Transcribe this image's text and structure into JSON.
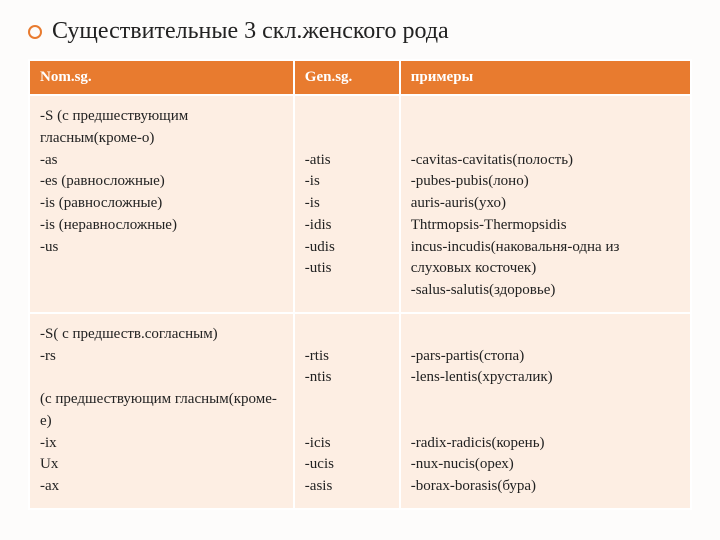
{
  "title": "Существительные 3 скл.женского рода",
  "headers": [
    "Nom.sg.",
    "Gen.sg.",
    "примеры"
  ],
  "colors": {
    "accent": "#e87b2f",
    "cell_bg": "#fdeee3",
    "header_text": "#ffffff",
    "page_bg": "#fdfcfb"
  },
  "rows": [
    {
      "nom": "-S (с предшествующим гласным(кроме-o)\n-as\n-es (равносложные)\n-is (равносложные)\n-is (неравносложные)\n-us",
      "gen": "\n\n-atis\n-is\n-is\n-idis\n-udis\n-utis",
      "ex": "\n\n-cavitas-cavitatis(полость)\n-pubes-pubis(лоно)\nauris-auris(ухо)\nThtrmopsis-Thermopsidis\nincus-incudis(наковальня-одна из слуховых косточек)\n-salus-salutis(здоровье)"
    },
    {
      "nom": "-S( с предшеств.согласным)\n-rs\n\n(с предшествующим гласным(кроме-e)\n-ix\nUx\n-ax",
      "gen": "\n-rtis\n-ntis\n\n\n-icis\n-ucis\n-asis",
      "ex": "\n-pars-partis(стопа)\n-lens-lentis(хрусталик)\n\n\n-radix-radicis(корень)\n-nux-nucis(орех)\n-borax-borasis(бура)"
    }
  ]
}
